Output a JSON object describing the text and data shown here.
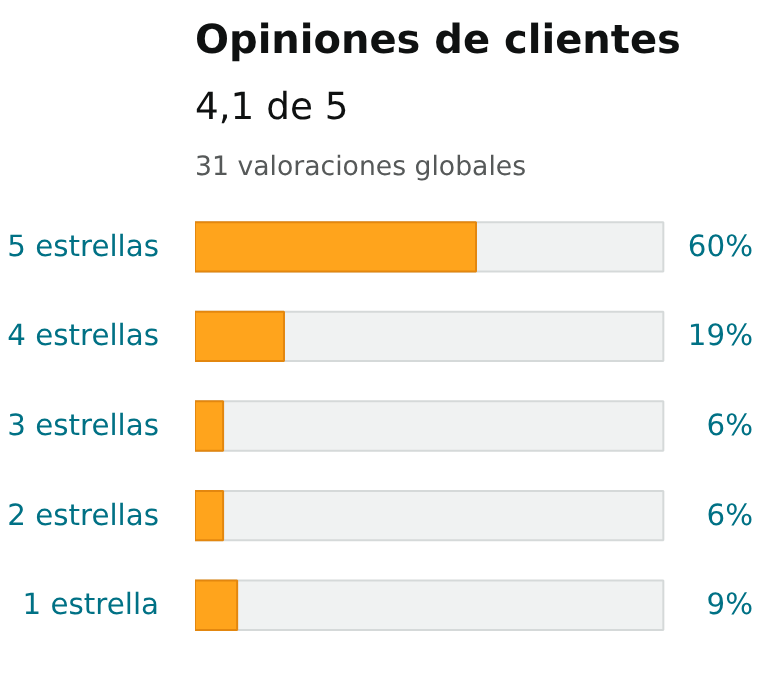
{
  "chart_data": {
    "type": "bar",
    "orientation": "horizontal",
    "title": "Opiniones de clientes",
    "subtitle": "4,1 de 5",
    "annotations": [
      "31 valoraciones globales"
    ],
    "categories": [
      "5 estrellas",
      "4 estrellas",
      "3 estrellas",
      "2 estrellas",
      "1 estrella"
    ],
    "values": [
      60,
      19,
      6,
      6,
      9
    ],
    "value_labels": [
      "60%",
      "19%",
      "6%",
      "6%",
      "9%"
    ],
    "color": "#ffa41c",
    "xlim": [
      0,
      100
    ],
    "tick_labels": "y",
    "grid": false
  }
}
